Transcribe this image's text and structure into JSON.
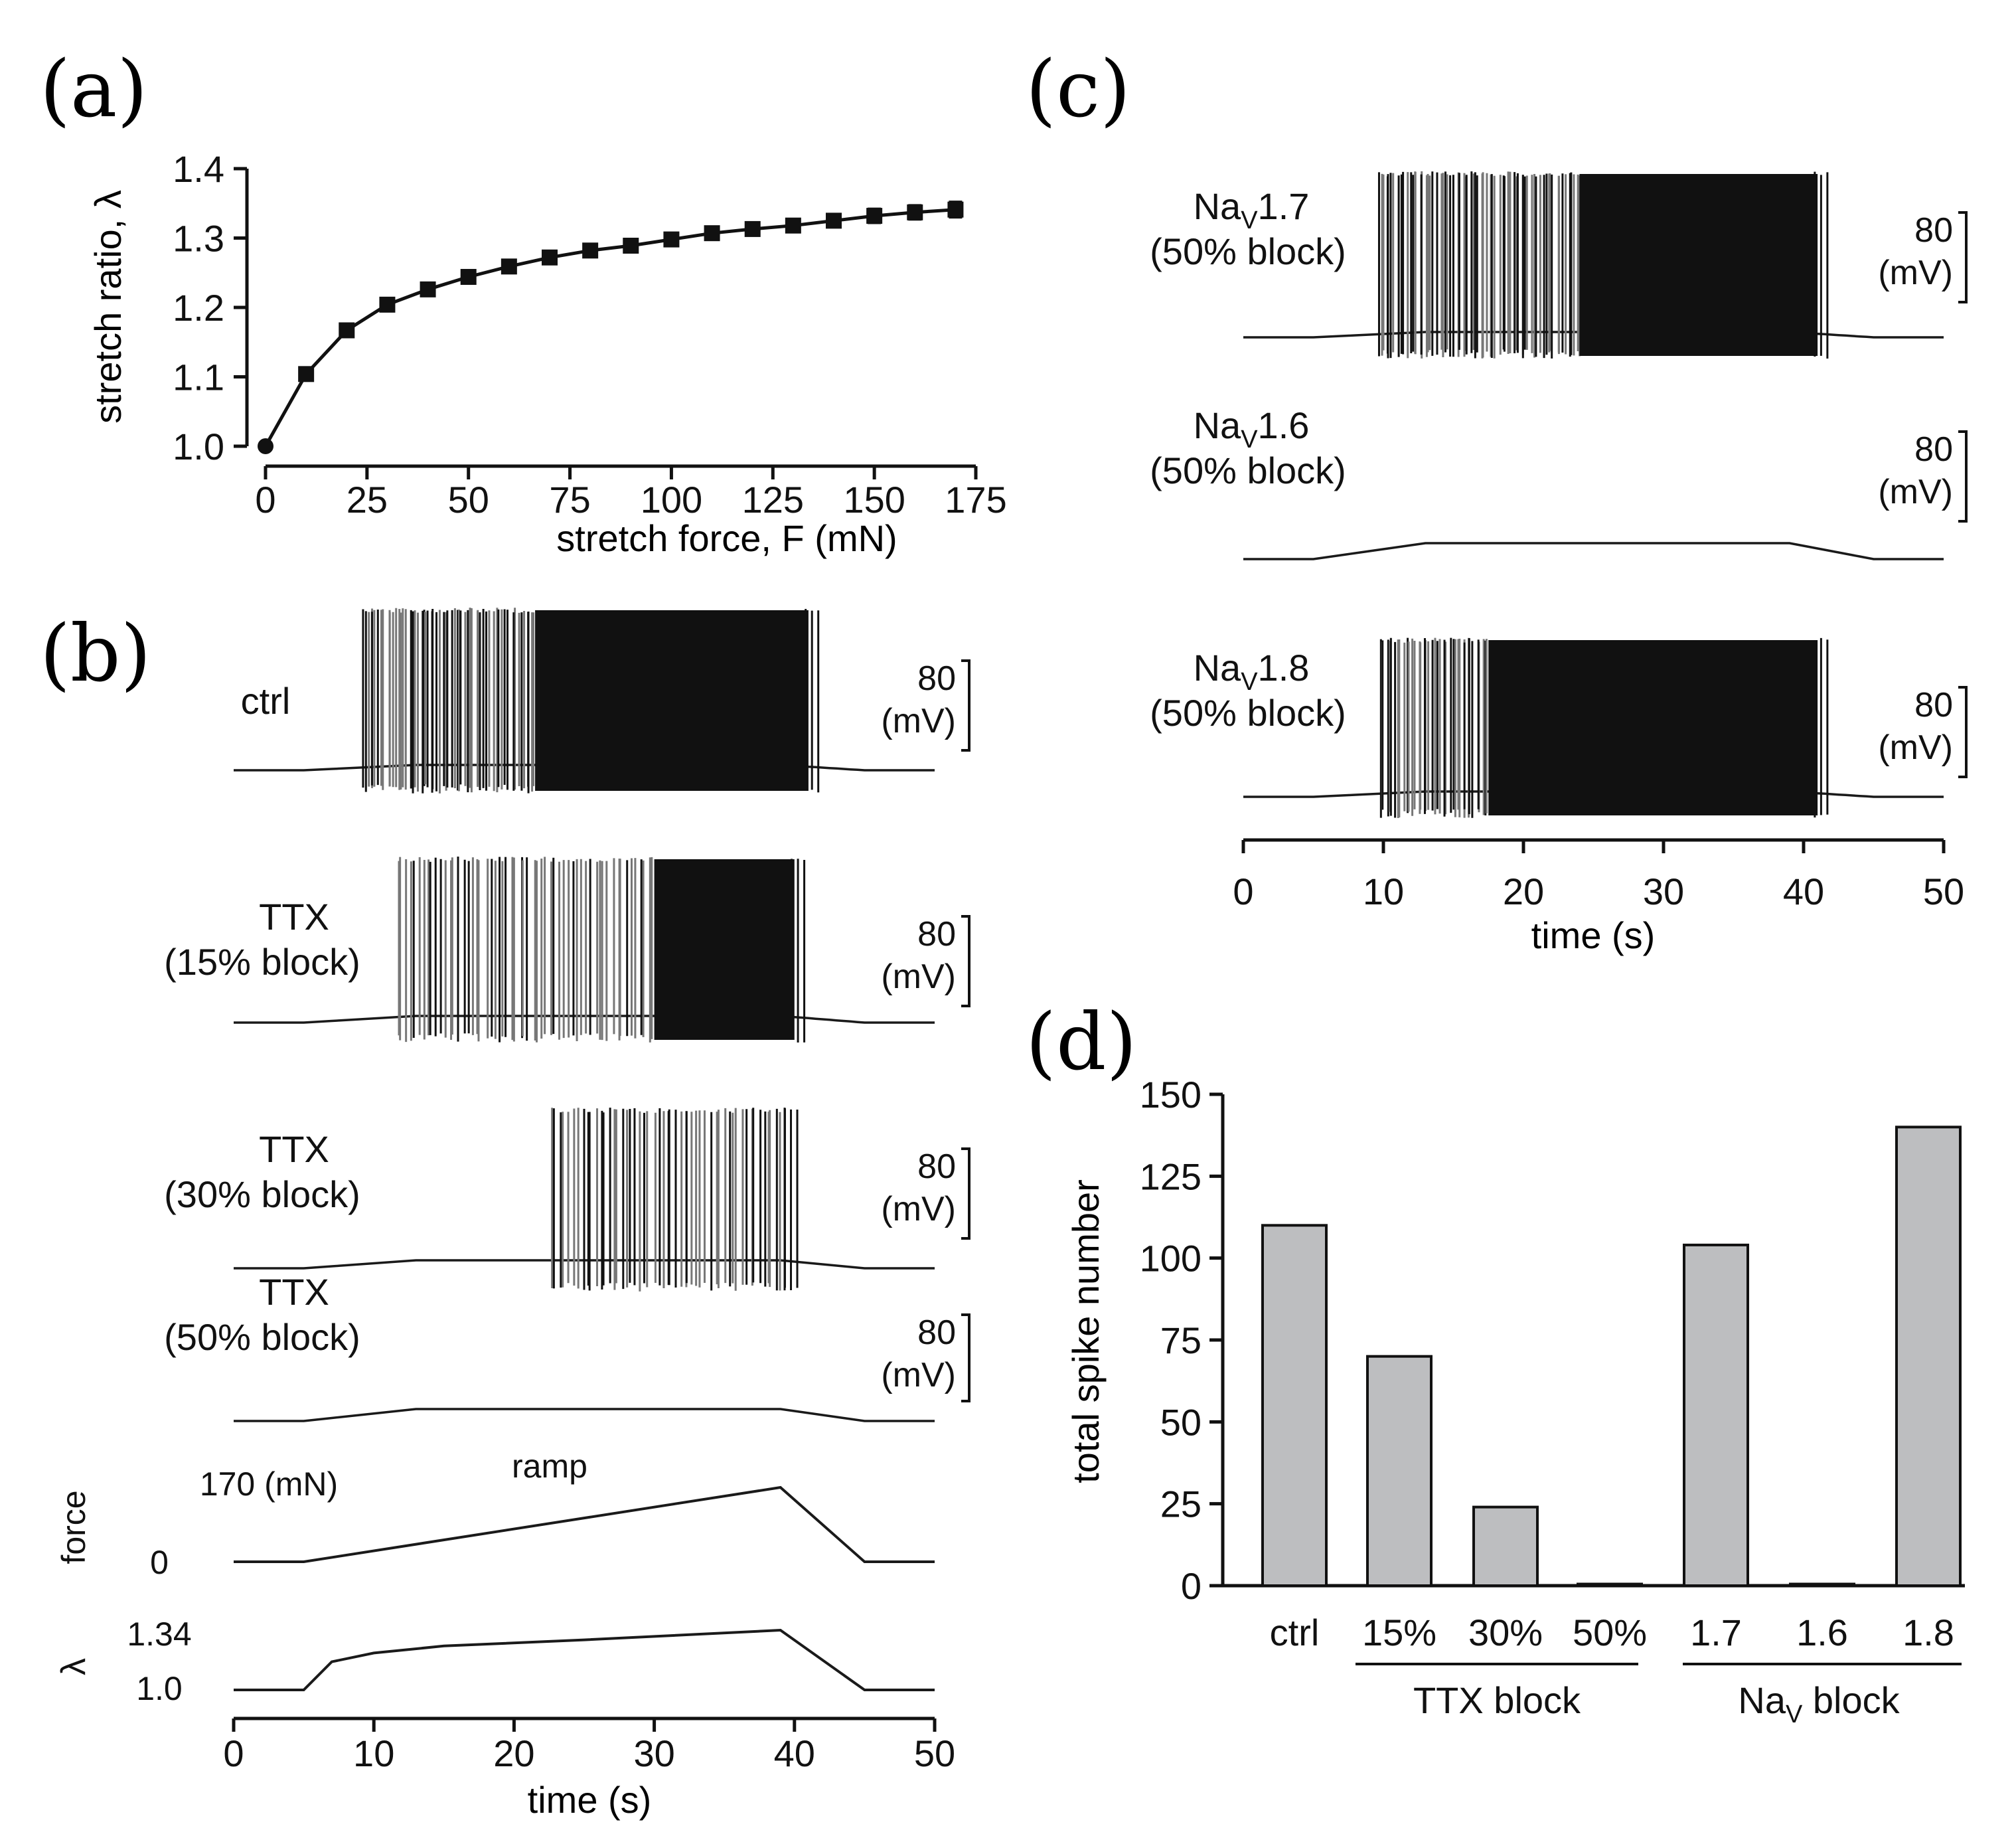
{
  "colors": {
    "ink": "#111111",
    "trace": "#1a1a1a",
    "spikes_light": "#777777",
    "bar_fill": "#bdbec0"
  },
  "chart_data": [
    {
      "panel": "(a)",
      "type": "line",
      "title": "",
      "xlabel": "stretch force, F (mN)",
      "ylabel": "stretch ratio, λ",
      "xlim": [
        0,
        175
      ],
      "ylim": [
        1.0,
        1.4
      ],
      "x_ticks": [
        "0",
        "25",
        "50",
        "75",
        "100",
        "125",
        "150",
        "175"
      ],
      "y_ticks": [
        "1.0",
        "1.1",
        "1.2",
        "1.3",
        "1.4"
      ],
      "x": [
        0,
        10,
        20,
        30,
        40,
        50,
        60,
        70,
        80,
        90,
        100,
        110,
        120,
        130,
        140,
        150,
        160,
        170
      ],
      "y": [
        1.0,
        1.104,
        1.167,
        1.204,
        1.226,
        1.244,
        1.259,
        1.272,
        1.282,
        1.289,
        1.298,
        1.307,
        1.313,
        1.318,
        1.325,
        1.332,
        1.337,
        1.341
      ],
      "error": [
        0,
        0.006,
        0.006,
        0.006,
        0.007,
        0.007,
        0.007,
        0.008,
        0.008,
        0.008,
        0.008,
        0.009,
        0.009,
        0.009,
        0.009,
        0.01,
        0.01,
        0.011
      ]
    },
    {
      "panel": "(b)",
      "type": "line",
      "xlabel": "time (s)",
      "xlim": [
        0,
        50
      ],
      "x_ticks": [
        "0",
        "10",
        "20",
        "30",
        "40",
        "50"
      ],
      "scale_bar": {
        "value": "80",
        "unit": "(mV)"
      },
      "traces": [
        {
          "label_line1": "ctrl",
          "label_line2": "",
          "spike_start": 9,
          "dense_start": 21.5,
          "spike_end": 41,
          "n_spikes": 110
        },
        {
          "label_line1": "TTX",
          "label_line2": "(15% block)",
          "spike_start": 11.5,
          "dense_start": 30,
          "spike_end": 40,
          "n_spikes": 70
        },
        {
          "label_line1": "TTX",
          "label_line2": "(30% block)",
          "spike_start": 22.5,
          "dense_start": 40,
          "spike_end": 39.5,
          "n_spikes": 24
        },
        {
          "label_line1": "TTX",
          "label_line2": "(50% block)",
          "spike_start": null,
          "dense_start": null,
          "spike_end": null,
          "n_spikes": 0
        }
      ],
      "force": {
        "axis_label": "force",
        "top_label": "170 (mN)",
        "zero_label": "0",
        "annotation": "ramp",
        "points": [
          [
            0,
            0
          ],
          [
            5,
            0
          ],
          [
            39,
            170
          ],
          [
            45,
            0
          ],
          [
            50,
            0
          ]
        ]
      },
      "lambda": {
        "axis_label": "λ",
        "top_label": "1.34",
        "bottom_label": "1.0",
        "points": [
          [
            0,
            1.0
          ],
          [
            5,
            1.0
          ],
          [
            7,
            1.16
          ],
          [
            10,
            1.21
          ],
          [
            15,
            1.25
          ],
          [
            25,
            1.285
          ],
          [
            39,
            1.34
          ],
          [
            45,
            1.0
          ],
          [
            50,
            1.0
          ]
        ]
      }
    },
    {
      "panel": "(c)",
      "type": "line",
      "xlabel": "time (s)",
      "xlim": [
        0,
        50
      ],
      "x_ticks": [
        "0",
        "10",
        "20",
        "30",
        "40",
        "50"
      ],
      "scale_bar": {
        "value": "80",
        "unit": "(mV)"
      },
      "traces": [
        {
          "label_main": "Na",
          "label_sub": "V",
          "label_num": "1.7",
          "label_line2": "(50% block)",
          "spike_start": 9.5,
          "dense_start": 24,
          "spike_end": 41,
          "n_spikes": 104
        },
        {
          "label_main": "Na",
          "label_sub": "V",
          "label_num": "1.6",
          "label_line2": "(50% block)",
          "spike_start": null,
          "dense_start": null,
          "spike_end": null,
          "n_spikes": 0
        },
        {
          "label_main": "Na",
          "label_sub": "V",
          "label_num": "1.8",
          "label_line2": "(50% block)",
          "spike_start": 9.5,
          "dense_start": 17.5,
          "spike_end": 41,
          "n_spikes": 140
        }
      ]
    },
    {
      "panel": "(d)",
      "type": "bar",
      "ylabel": "total spike number",
      "ylim": [
        0,
        150
      ],
      "y_ticks": [
        "0",
        "25",
        "50",
        "75",
        "100",
        "125",
        "150"
      ],
      "categories": [
        "ctrl",
        "15%",
        "30%",
        "50%",
        "1.7",
        "1.6",
        "1.8"
      ],
      "values": [
        110,
        70,
        24,
        0.5,
        104,
        0.5,
        140
      ],
      "groups": [
        {
          "label": "TTX block",
          "sub": ""
        },
        {
          "label": "Na",
          "sub": "V",
          "rest": " block"
        }
      ]
    }
  ]
}
